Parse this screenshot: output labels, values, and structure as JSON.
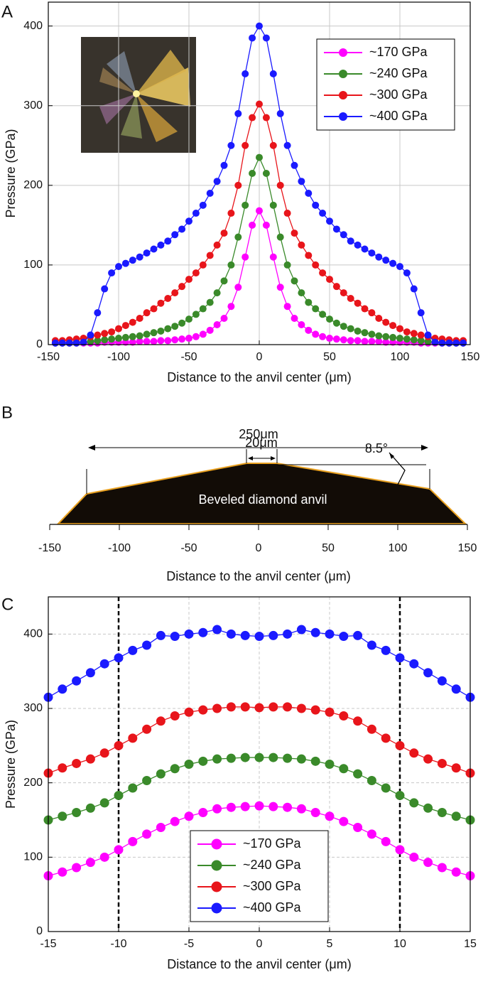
{
  "chart_data": [
    {
      "type": "line",
      "label": "A",
      "xlabel": "Distance to the anvil center (μm)",
      "ylabel": "Pressure (GPa)",
      "xlim": [
        -150,
        150
      ],
      "ylim": [
        0,
        430
      ],
      "xticks": [
        -150,
        -100,
        -50,
        0,
        50,
        100,
        150
      ],
      "yticks": [
        0,
        100,
        200,
        300,
        400
      ],
      "grid": "solid",
      "legend": "upper right",
      "x": [
        -145,
        -140,
        -135,
        -130,
        -125,
        -120,
        -115,
        -110,
        -105,
        -100,
        -95,
        -90,
        -85,
        -80,
        -75,
        -70,
        -65,
        -60,
        -55,
        -50,
        -45,
        -40,
        -35,
        -30,
        -25,
        -20,
        -15,
        -10,
        -5,
        0,
        5,
        10,
        15,
        20,
        25,
        30,
        35,
        40,
        45,
        50,
        55,
        60,
        65,
        70,
        75,
        80,
        85,
        90,
        95,
        100,
        105,
        110,
        115,
        120,
        125,
        130,
        135,
        140,
        145
      ],
      "series": [
        {
          "name": "~170 GPa",
          "color": "#ff00ff",
          "values": [
            2,
            2,
            2,
            2,
            2,
            2,
            2,
            3,
            3,
            3,
            3,
            3,
            4,
            4,
            4,
            5,
            5,
            6,
            7,
            8,
            10,
            13,
            18,
            25,
            33,
            48,
            72,
            110,
            150,
            168,
            150,
            110,
            72,
            48,
            33,
            25,
            18,
            13,
            10,
            8,
            7,
            6,
            5,
            5,
            4,
            4,
            4,
            3,
            3,
            3,
            3,
            3,
            2,
            2,
            2,
            2,
            2,
            2,
            2
          ]
        },
        {
          "name": "~240 GPa",
          "color": "#3a8a2a",
          "values": [
            2,
            2,
            2,
            3,
            3,
            4,
            5,
            6,
            7,
            8,
            9,
            10,
            11,
            13,
            15,
            17,
            20,
            23,
            27,
            32,
            38,
            45,
            53,
            65,
            80,
            100,
            135,
            175,
            215,
            235,
            215,
            175,
            135,
            100,
            80,
            65,
            53,
            45,
            38,
            32,
            27,
            23,
            20,
            17,
            15,
            13,
            11,
            10,
            9,
            8,
            7,
            6,
            5,
            4,
            3,
            3,
            2,
            2,
            2
          ]
        },
        {
          "name": "~300 GPa",
          "color": "#e8151b",
          "values": [
            5,
            5,
            6,
            7,
            8,
            10,
            12,
            14,
            16,
            20,
            24,
            28,
            33,
            40,
            45,
            52,
            58,
            65,
            73,
            82,
            90,
            100,
            112,
            125,
            140,
            165,
            200,
            250,
            285,
            302,
            285,
            250,
            200,
            165,
            140,
            125,
            112,
            100,
            90,
            82,
            73,
            65,
            58,
            52,
            45,
            40,
            33,
            28,
            24,
            20,
            16,
            14,
            12,
            10,
            8,
            7,
            6,
            5,
            5
          ]
        },
        {
          "name": "~400 GPa",
          "color": "#1a1aff",
          "values": [
            2,
            2,
            2,
            2,
            3,
            12,
            40,
            70,
            90,
            98,
            102,
            106,
            110,
            115,
            120,
            125,
            130,
            138,
            145,
            155,
            165,
            175,
            190,
            205,
            225,
            250,
            290,
            340,
            385,
            400,
            385,
            340,
            290,
            250,
            225,
            205,
            190,
            175,
            165,
            155,
            145,
            138,
            130,
            125,
            120,
            115,
            110,
            106,
            102,
            98,
            90,
            70,
            40,
            12,
            3,
            2,
            2,
            2,
            2
          ]
        }
      ]
    },
    {
      "type": "anvil",
      "label": "B",
      "xlabel": "Distance to the anvil center  (μm)",
      "xlim": [
        -150,
        150
      ],
      "xticks": [
        -150,
        -100,
        -50,
        0,
        50,
        100,
        150
      ],
      "annotations": [
        "250μm",
        "20μm",
        "8.5°",
        "Beveled diamond anvil"
      ]
    },
    {
      "type": "line",
      "label": "C",
      "xlabel": "Distance to the anvil center (μm)",
      "ylabel": "Pressure (GPa)",
      "xlim": [
        -15,
        15
      ],
      "ylim": [
        0,
        450
      ],
      "xticks": [
        -15,
        -10,
        -5,
        0,
        5,
        10,
        15
      ],
      "yticks": [
        0,
        100,
        200,
        300,
        400
      ],
      "grid": "dashed",
      "legend": "lower center",
      "vlines": [
        -10,
        10
      ],
      "x": [
        -15,
        -14,
        -13,
        -12,
        -11,
        -10,
        -9,
        -8,
        -7,
        -6,
        -5,
        -4,
        -3,
        -2,
        -1,
        0,
        1,
        2,
        3,
        4,
        5,
        6,
        7,
        8,
        9,
        10,
        11,
        12,
        13,
        14,
        15
      ],
      "series": [
        {
          "name": "~170 GPa",
          "color": "#ff00ff",
          "values": [
            75,
            80,
            86,
            93,
            100,
            110,
            121,
            131,
            140,
            148,
            155,
            160,
            165,
            167,
            168,
            169,
            168,
            167,
            165,
            160,
            155,
            148,
            140,
            131,
            121,
            110,
            100,
            93,
            86,
            80,
            75
          ]
        },
        {
          "name": "~240 GPa",
          "color": "#3a8a2a",
          "values": [
            150,
            155,
            160,
            166,
            173,
            183,
            193,
            203,
            212,
            219,
            225,
            229,
            232,
            233,
            234,
            234,
            234,
            233,
            232,
            229,
            225,
            219,
            212,
            203,
            193,
            183,
            173,
            166,
            160,
            155,
            150
          ]
        },
        {
          "name": "~300 GPa",
          "color": "#e8151b",
          "values": [
            213,
            220,
            226,
            232,
            240,
            250,
            260,
            272,
            283,
            290,
            295,
            298,
            300,
            302,
            302,
            301,
            302,
            302,
            300,
            298,
            295,
            290,
            283,
            272,
            260,
            250,
            240,
            232,
            226,
            220,
            213
          ]
        },
        {
          "name": "~400 GPa",
          "color": "#1a1aff",
          "values": [
            315,
            326,
            337,
            348,
            360,
            368,
            378,
            385,
            398,
            397,
            400,
            402,
            406,
            400,
            398,
            397,
            398,
            400,
            406,
            402,
            400,
            397,
            398,
            385,
            378,
            368,
            360,
            348,
            337,
            326,
            315
          ]
        }
      ]
    }
  ]
}
